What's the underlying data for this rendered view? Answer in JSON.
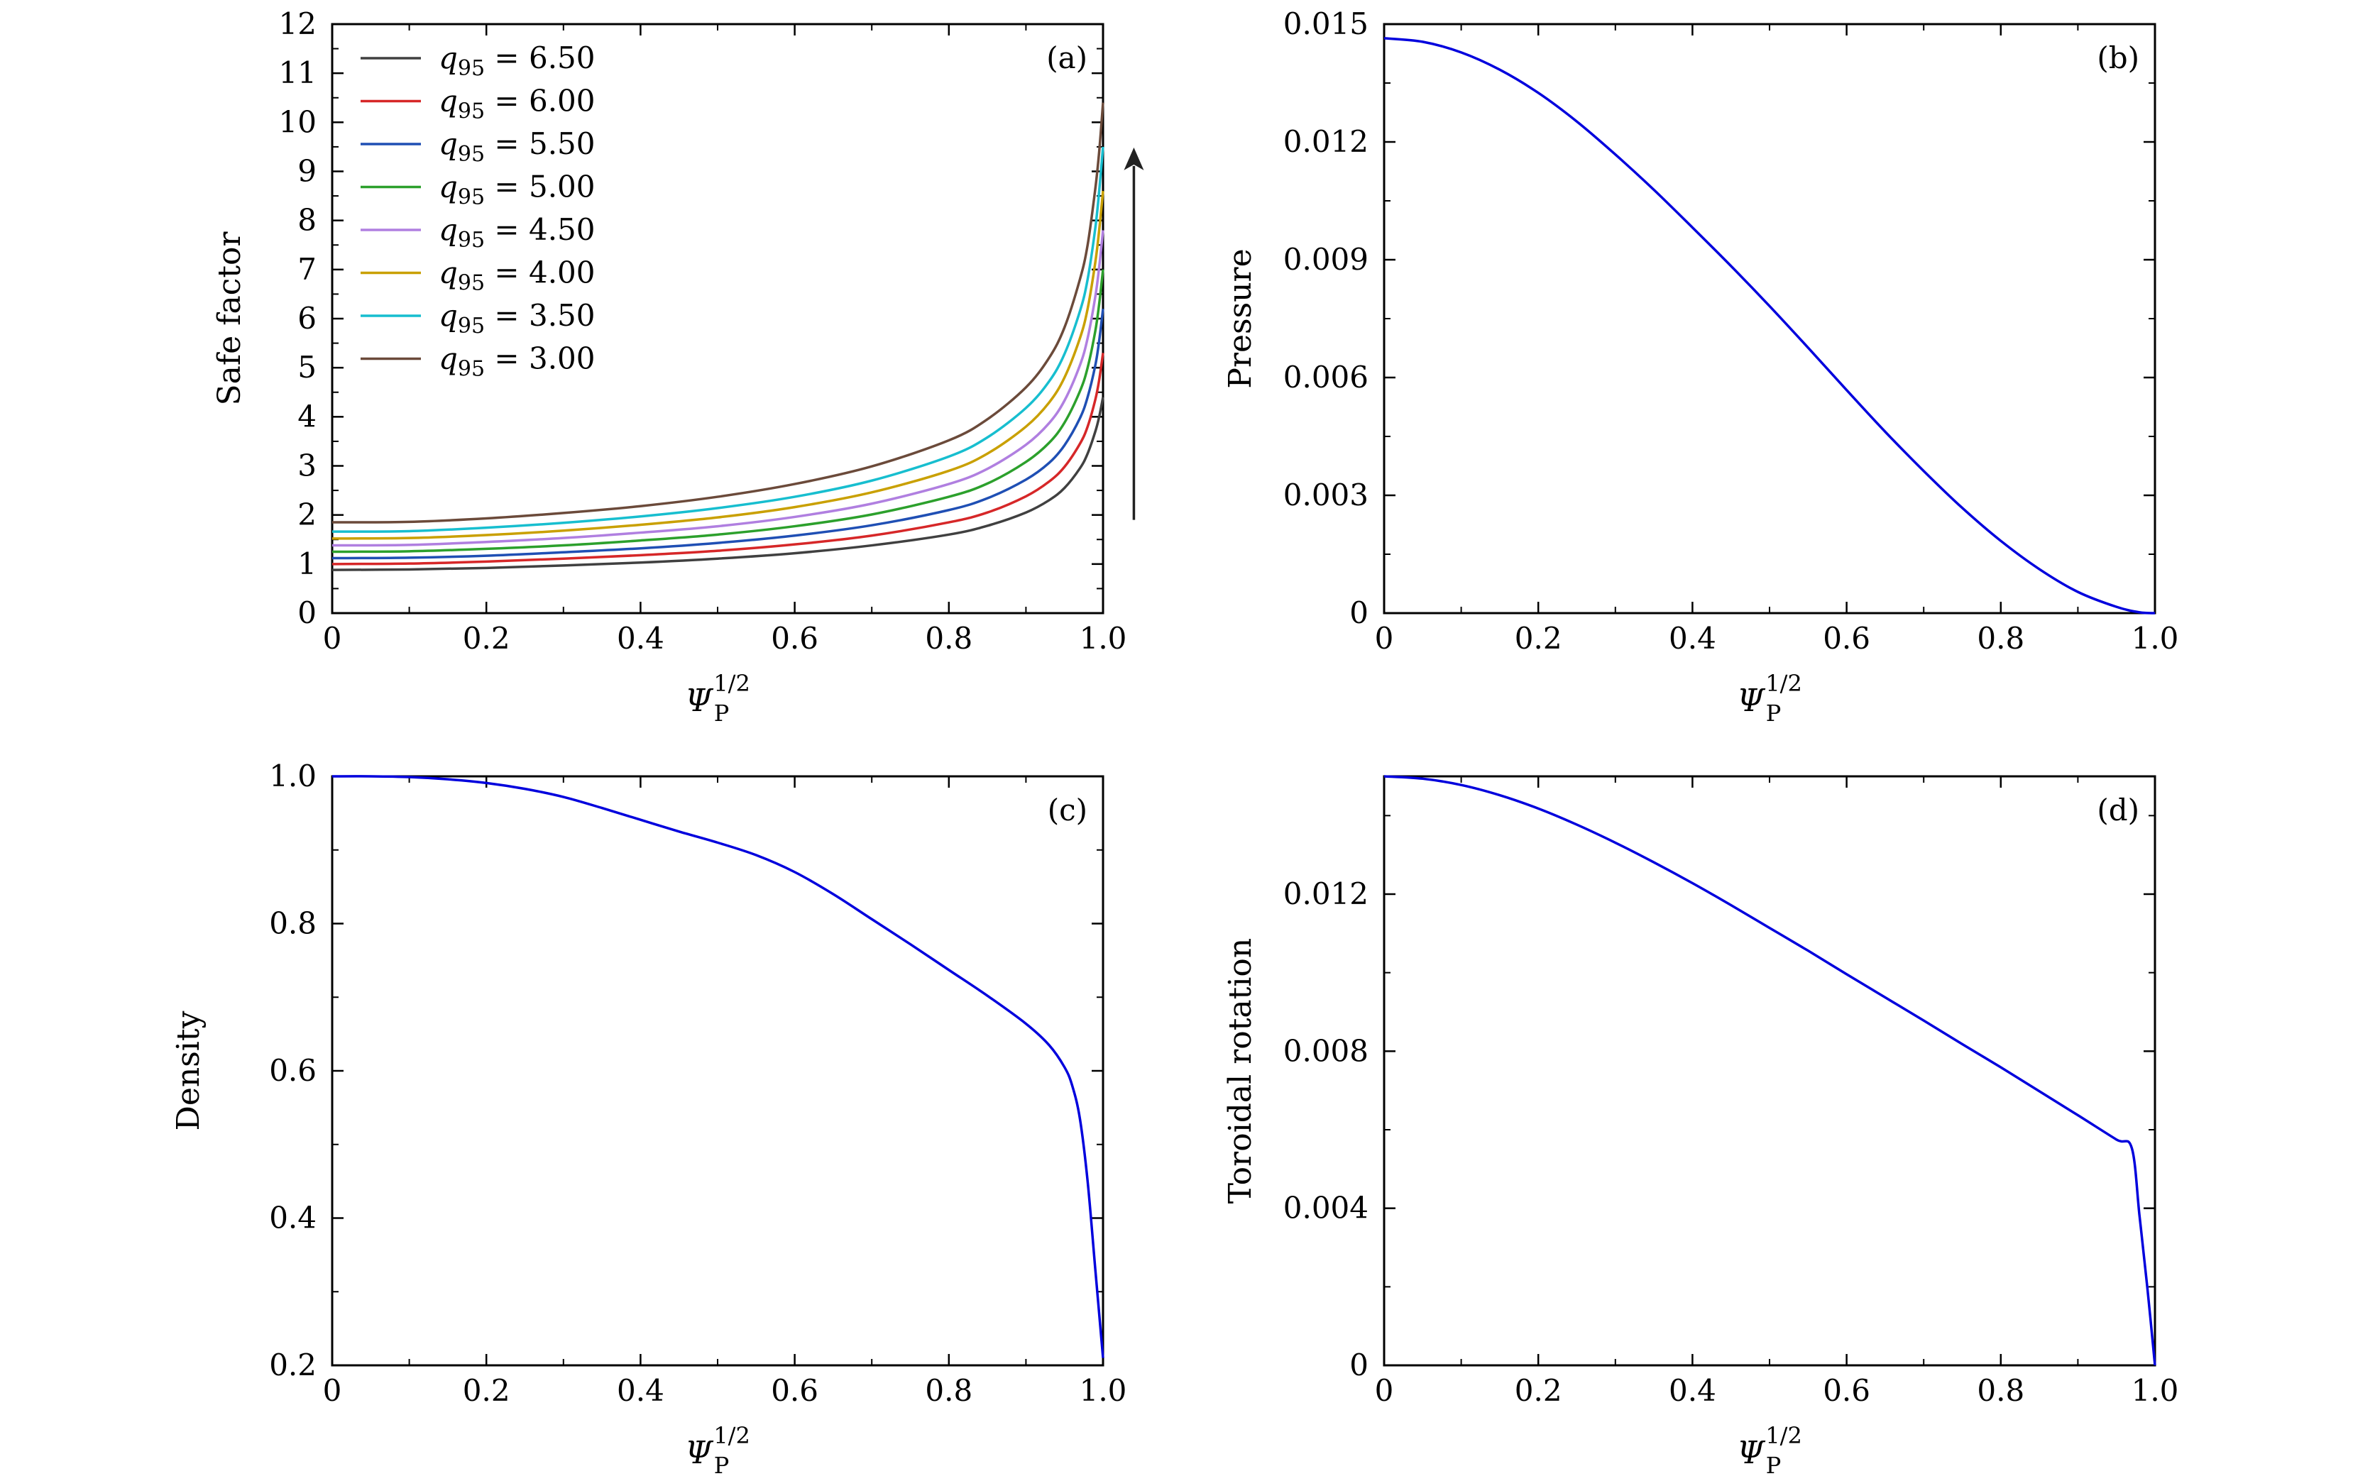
{
  "figure_caption": "",
  "chart_data": [
    {
      "id": "a",
      "type": "line",
      "panel_label": "(a)",
      "title": "",
      "xlabel": "Ψ_P^{1/2}",
      "ylabel": "Safe factor",
      "xlim": [
        0,
        1.0
      ],
      "ylim": [
        0,
        12
      ],
      "xticks": [
        "0",
        "0.2",
        "0.4",
        "0.6",
        "0.8",
        "1.0"
      ],
      "xtick_values": [
        0,
        0.2,
        0.4,
        0.6,
        0.8,
        1.0
      ],
      "yticks": [
        "0",
        "1",
        "2",
        "3",
        "4",
        "5",
        "6",
        "7",
        "8",
        "9",
        "10",
        "11",
        "12"
      ],
      "ytick_values": [
        0,
        1,
        2,
        3,
        4,
        5,
        6,
        7,
        8,
        9,
        10,
        11,
        12
      ],
      "annotation": "arrow pointing upward (increasing safe factor as q95 decreases)",
      "annotation_arrow_data": {
        "x": 1.04,
        "y_from": 1.9,
        "y_to": 9.4
      },
      "legend_position": "top-left",
      "x": [
        0,
        0.1,
        0.2,
        0.3,
        0.4,
        0.5,
        0.6,
        0.7,
        0.8,
        0.85,
        0.9,
        0.93,
        0.95,
        0.97,
        0.98,
        0.99,
        0.995,
        1.0
      ],
      "series": [
        {
          "name": "q95 = 6.50",
          "label_value": "6.50",
          "color": "#404040",
          "values": [
            0.88,
            0.89,
            0.92,
            0.97,
            1.03,
            1.11,
            1.22,
            1.38,
            1.6,
            1.78,
            2.05,
            2.3,
            2.55,
            2.95,
            3.25,
            3.7,
            4.0,
            4.4
          ]
        },
        {
          "name": "q95 = 6.00",
          "label_value": "6.00",
          "color": "#d62728",
          "values": [
            1.0,
            1.01,
            1.05,
            1.11,
            1.18,
            1.27,
            1.4,
            1.58,
            1.85,
            2.05,
            2.38,
            2.68,
            2.98,
            3.45,
            3.8,
            4.35,
            4.75,
            5.3
          ]
        },
        {
          "name": "q95 = 5.50",
          "label_value": "5.50",
          "color": "#1f4fb4",
          "values": [
            1.12,
            1.13,
            1.17,
            1.24,
            1.32,
            1.43,
            1.58,
            1.79,
            2.1,
            2.34,
            2.72,
            3.06,
            3.42,
            3.97,
            4.4,
            5.05,
            5.55,
            6.2
          ]
        },
        {
          "name": "q95 = 5.00",
          "label_value": "5.00",
          "color": "#2ca02c",
          "values": [
            1.25,
            1.26,
            1.31,
            1.38,
            1.48,
            1.6,
            1.77,
            2.01,
            2.37,
            2.64,
            3.08,
            3.47,
            3.88,
            4.52,
            5.0,
            5.75,
            6.3,
            7.0
          ]
        },
        {
          "name": "q95 = 4.50",
          "label_value": "4.50",
          "color": "#b07fe0",
          "values": [
            1.38,
            1.39,
            1.45,
            1.53,
            1.64,
            1.77,
            1.96,
            2.23,
            2.63,
            2.94,
            3.43,
            3.87,
            4.33,
            5.05,
            5.6,
            6.45,
            7.05,
            7.8
          ]
        },
        {
          "name": "q95 = 4.00",
          "label_value": "4.00",
          "color": "#c9a000",
          "values": [
            1.52,
            1.53,
            1.59,
            1.68,
            1.8,
            1.95,
            2.16,
            2.46,
            2.9,
            3.25,
            3.8,
            4.29,
            4.8,
            5.6,
            6.2,
            7.15,
            7.8,
            8.6
          ]
        },
        {
          "name": "q95 = 3.50",
          "label_value": "3.50",
          "color": "#17becf",
          "values": [
            1.66,
            1.67,
            1.74,
            1.84,
            1.97,
            2.14,
            2.37,
            2.7,
            3.19,
            3.58,
            4.18,
            4.72,
            5.28,
            6.15,
            6.8,
            7.85,
            8.6,
            9.5
          ]
        },
        {
          "name": "q95 = 3.00",
          "label_value": "3.00",
          "color": "#6b4a3a",
          "values": [
            1.85,
            1.86,
            1.93,
            2.04,
            2.18,
            2.37,
            2.63,
            2.99,
            3.52,
            3.95,
            4.6,
            5.2,
            5.82,
            6.8,
            7.5,
            8.65,
            9.4,
            10.4
          ]
        }
      ]
    },
    {
      "id": "b",
      "type": "line",
      "panel_label": "(b)",
      "title": "",
      "xlabel": "Ψ_P^{1/2}",
      "ylabel": "Pressure",
      "xlim": [
        0,
        1.0
      ],
      "ylim": [
        0,
        0.015
      ],
      "xticks": [
        "0",
        "0.2",
        "0.4",
        "0.6",
        "0.8",
        "1.0"
      ],
      "xtick_values": [
        0,
        0.2,
        0.4,
        0.6,
        0.8,
        1.0
      ],
      "yticks": [
        "0",
        "0.003",
        "0.006",
        "0.009",
        "0.012",
        "0.015"
      ],
      "ytick_values": [
        0,
        0.003,
        0.006,
        0.009,
        0.012,
        0.015
      ],
      "x": [
        0,
        0.05,
        0.1,
        0.15,
        0.2,
        0.25,
        0.3,
        0.35,
        0.4,
        0.45,
        0.5,
        0.55,
        0.6,
        0.65,
        0.7,
        0.75,
        0.8,
        0.85,
        0.9,
        0.95,
        0.98,
        1.0
      ],
      "series": [
        {
          "name": "Pressure",
          "color": "#0000dd",
          "values": [
            0.01464,
            0.01455,
            0.01428,
            0.01384,
            0.01325,
            0.01252,
            0.01168,
            0.01078,
            0.00982,
            0.00884,
            0.00782,
            0.00676,
            0.00568,
            0.00462,
            0.00362,
            0.00268,
            0.00184,
            0.00112,
            0.00054,
            0.00016,
            2e-05,
            0.0
          ]
        }
      ]
    },
    {
      "id": "c",
      "type": "line",
      "panel_label": "(c)",
      "title": "",
      "xlabel": "Ψ_P^{1/2}",
      "ylabel": "Density",
      "xlim": [
        0,
        1.0
      ],
      "ylim": [
        0.2,
        1.0
      ],
      "xticks": [
        "0",
        "0.2",
        "0.4",
        "0.6",
        "0.8",
        "1.0"
      ],
      "xtick_values": [
        0,
        0.2,
        0.4,
        0.6,
        0.8,
        1.0
      ],
      "yticks": [
        "0.2",
        "0.4",
        "0.6",
        "0.8",
        "1.0"
      ],
      "ytick_values": [
        0.2,
        0.4,
        0.6,
        0.8,
        1.0
      ],
      "x": [
        0,
        0.05,
        0.1,
        0.15,
        0.2,
        0.25,
        0.3,
        0.35,
        0.4,
        0.45,
        0.5,
        0.55,
        0.6,
        0.65,
        0.7,
        0.75,
        0.8,
        0.85,
        0.9,
        0.93,
        0.95,
        0.96,
        0.97,
        0.98,
        0.99,
        1.0
      ],
      "series": [
        {
          "name": "Density",
          "color": "#0000dd",
          "values": [
            1.0,
            1.0,
            0.999,
            0.996,
            0.991,
            0.983,
            0.972,
            0.957,
            0.941,
            0.925,
            0.91,
            0.893,
            0.87,
            0.84,
            0.806,
            0.772,
            0.737,
            0.702,
            0.664,
            0.635,
            0.605,
            0.58,
            0.535,
            0.45,
            0.33,
            0.21
          ]
        }
      ]
    },
    {
      "id": "d",
      "type": "line",
      "panel_label": "(d)",
      "title": "",
      "xlabel": "Ψ_P^{1/2}",
      "ylabel": "Toroidal rotation",
      "xlim": [
        0,
        1.0
      ],
      "ylim": [
        0,
        0.015
      ],
      "xticks": [
        "0",
        "0.2",
        "0.4",
        "0.6",
        "0.8",
        "1.0"
      ],
      "xtick_values": [
        0,
        0.2,
        0.4,
        0.6,
        0.8,
        1.0
      ],
      "yticks": [
        "0",
        "0.004",
        "0.008",
        "0.012"
      ],
      "ytick_values": [
        0,
        0.004,
        0.008,
        0.012
      ],
      "x": [
        0,
        0.05,
        0.1,
        0.15,
        0.2,
        0.25,
        0.3,
        0.35,
        0.4,
        0.45,
        0.5,
        0.55,
        0.6,
        0.65,
        0.7,
        0.75,
        0.8,
        0.85,
        0.9,
        0.95,
        0.97,
        0.98,
        0.99,
        1.0
      ],
      "series": [
        {
          "name": "Toroidal rotation",
          "color": "#0000dd",
          "values": [
            0.015,
            0.01494,
            0.01478,
            0.01452,
            0.01418,
            0.01377,
            0.01331,
            0.01281,
            0.01228,
            0.01172,
            0.01114,
            0.01056,
            0.00996,
            0.00937,
            0.00878,
            0.00818,
            0.00759,
            0.00698,
            0.00637,
            0.00575,
            0.00553,
            0.0038,
            0.002,
            0.0
          ]
        }
      ]
    }
  ]
}
